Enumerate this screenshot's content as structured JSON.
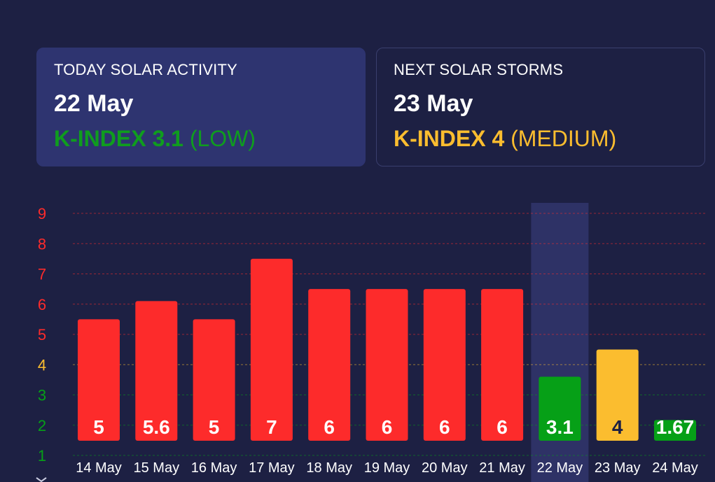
{
  "today": {
    "heading": "TODAY SOLAR ACTIVITY",
    "date": "22 May",
    "kindex_label": "K-INDEX 3.1",
    "level": "(LOW)",
    "color": "#0f9d1e"
  },
  "next": {
    "heading": "NEXT SOLAR STORMS",
    "date": "23 May",
    "kindex_label": "K-INDEX 4",
    "level": "(MEDIUM)",
    "color": "#fbbd2f"
  },
  "chart_data": {
    "type": "bar",
    "categories": [
      "14 May",
      "15 May",
      "16 May",
      "17 May",
      "18 May",
      "19 May",
      "20 May",
      "21 May",
      "22 May",
      "23 May",
      "24 May"
    ],
    "values": [
      5,
      5.6,
      5,
      7,
      6,
      6,
      6,
      6,
      3.1,
      4,
      1.67
    ],
    "value_labels": [
      "5",
      "5.6",
      "5",
      "7",
      "6",
      "6",
      "6",
      "6",
      "3.1",
      "4",
      "1.67"
    ],
    "bar_colors": [
      "#fd2b2b",
      "#fd2b2b",
      "#fd2b2b",
      "#fd2b2b",
      "#fd2b2b",
      "#fd2b2b",
      "#fd2b2b",
      "#fd2b2b",
      "#06a017",
      "#fbbd2f",
      "#06a017"
    ],
    "label_colors": [
      "#ffffff",
      "#ffffff",
      "#ffffff",
      "#ffffff",
      "#ffffff",
      "#ffffff",
      "#ffffff",
      "#ffffff",
      "#ffffff",
      "#1d2043",
      "#ffffff"
    ],
    "highlight_category": "22 May",
    "y_ticks": [
      1,
      2,
      3,
      4,
      5,
      6,
      7,
      8,
      9
    ],
    "y_tick_colors": [
      "#06a017",
      "#06a017",
      "#06a017",
      "#fbbd2f",
      "#fd2b2b",
      "#fd2b2b",
      "#fd2b2b",
      "#fd2b2b",
      "#fd2b2b"
    ],
    "ylim": [
      1,
      9
    ],
    "grid": true,
    "title": "",
    "xlabel": "",
    "ylabel": ""
  }
}
